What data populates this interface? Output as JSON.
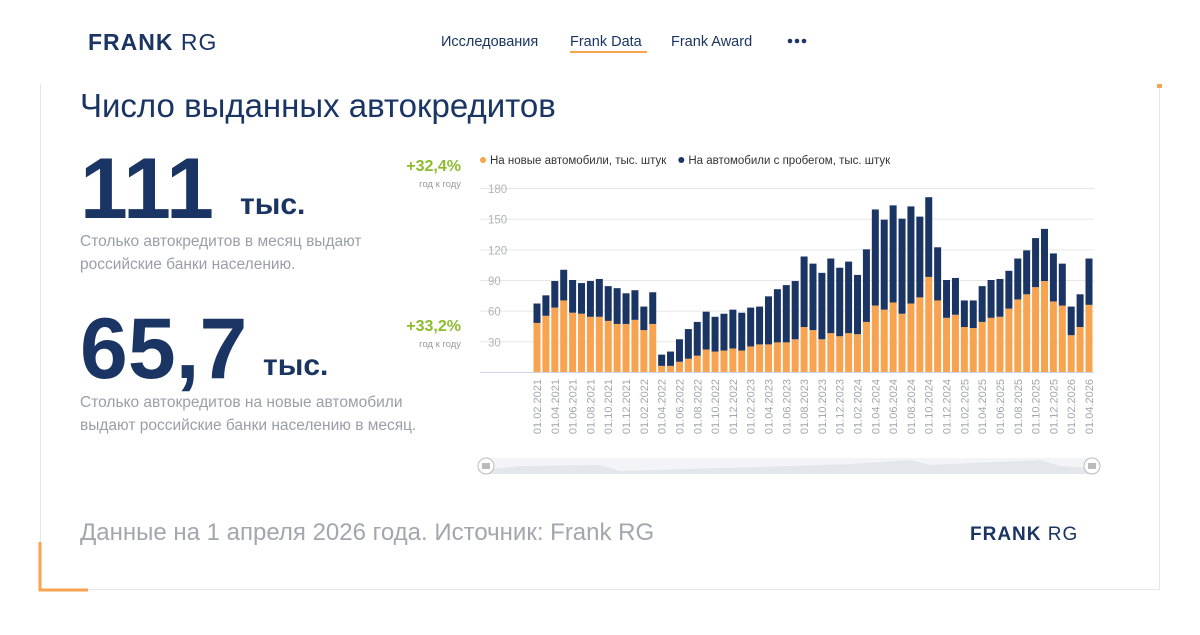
{
  "header": {
    "logo": {
      "bold": "FRANK",
      "light": "RG"
    },
    "nav": [
      "Исследования",
      "Frank Data",
      "Frank Award"
    ]
  },
  "title": "Число выданных автокредитов",
  "stats": [
    {
      "value": "111",
      "unit": "тыс.",
      "change": "+32,4%",
      "change_note": "год к году",
      "description": [
        "Столько автокредитов в месяц выдают",
        "российские банки населению."
      ]
    },
    {
      "value": "65,7",
      "unit": "тыс.",
      "change": "+33,2%",
      "change_note": "год к году",
      "description": [
        "Столько автокредитов на новые автомобили",
        "выдают российские банки населению в месяц."
      ]
    }
  ],
  "footer": {
    "text": "Данные на 1 апреля 2026 года. Источник: Frank RG",
    "logo": {
      "bold": "FRANK",
      "light": "RG"
    }
  },
  "chart_data": {
    "type": "stacked_bar",
    "categories": [
      "01.02.2021",
      null,
      "01.04.2021",
      null,
      "01.06.2021",
      null,
      "01.08.2021",
      null,
      "01.10.2021",
      null,
      "01.12.2021",
      null,
      "01.02.2022",
      null,
      "01.04.2022",
      null,
      "01.06.2022",
      null,
      "01.08.2022",
      null,
      "01.10.2022",
      null,
      "01.12.2022",
      null,
      "01.02.2023",
      null,
      "01.04.2023",
      null,
      "01.06.2023",
      null,
      "01.08.2023",
      null,
      "01.10.2023",
      null,
      "01.12.2023",
      null,
      "01.02.2024",
      null,
      "01.04.2024",
      null,
      "01.06.2024",
      null,
      "01.08.2024",
      null,
      "01.10.2024",
      null,
      "01.12.2024",
      null,
      "01.02.2025",
      null,
      "01.04.2025",
      null,
      "01.06.2025",
      null,
      "01.08.2025",
      null,
      "01.10.2025",
      null,
      "01.12.2025",
      null,
      "01.02.2026",
      null,
      "01.04.2026"
    ],
    "series": [
      {
        "name": "На новые автомобили, тыс. штук",
        "color": "#f7a350",
        "values": [
          48,
          55,
          63,
          70,
          58,
          57,
          54,
          54,
          50,
          47,
          47,
          51,
          41,
          47,
          6,
          6,
          10,
          13,
          16,
          22,
          20,
          21,
          23,
          21,
          25,
          27,
          27,
          29,
          29,
          32,
          44,
          41,
          32,
          38,
          35,
          38,
          37,
          49,
          65,
          61,
          68,
          57,
          67,
          73,
          93,
          70,
          53,
          56,
          44,
          43,
          49,
          53,
          54,
          62,
          71,
          76,
          83,
          89,
          69,
          65,
          36,
          44,
          65.7
        ]
      },
      {
        "name": "На автомобили с пробегом, тыс. штук",
        "color": "#1a3563",
        "values": [
          19,
          20,
          26,
          30,
          32,
          30,
          35,
          37,
          34,
          35,
          30,
          29,
          23,
          31,
          11,
          14,
          22,
          29,
          33,
          37,
          34,
          36,
          38,
          37,
          38,
          37,
          47,
          52,
          56,
          57,
          69,
          65,
          65,
          73,
          67,
          70,
          58,
          71,
          94,
          88,
          95,
          93,
          95,
          79,
          78,
          52,
          37,
          36,
          26,
          27,
          35,
          37,
          37,
          37,
          40,
          43,
          48,
          51,
          47,
          41,
          28,
          32,
          45.3
        ]
      }
    ],
    "ylim": [
      0,
      180
    ],
    "yticks": [
      30,
      60,
      90,
      120,
      150,
      180
    ],
    "grid": true
  }
}
